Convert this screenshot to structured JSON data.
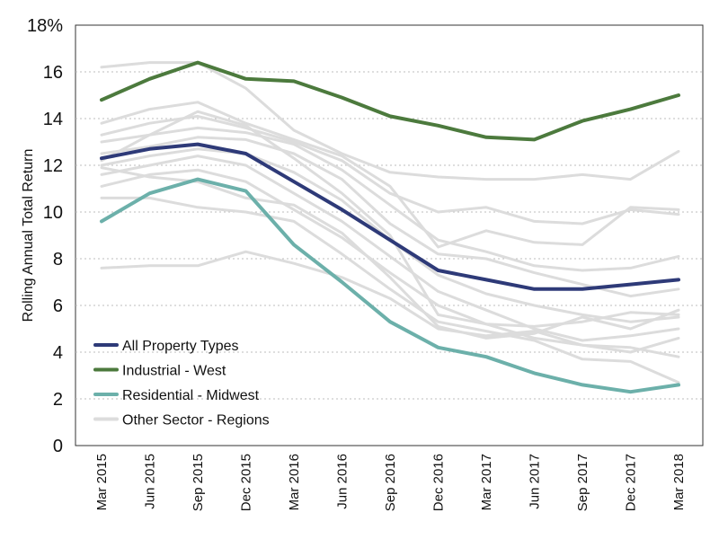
{
  "chart_data": {
    "type": "line",
    "title": "",
    "xlabel": "",
    "ylabel": "Rolling Annual Total Return",
    "ylim": [
      0,
      18
    ],
    "y_ticks": [
      "0",
      "2",
      "4",
      "6",
      "8",
      "10",
      "12",
      "14",
      "16",
      "18%"
    ],
    "categories": [
      "Mar 2015",
      "Jun 2015",
      "Sep 2015",
      "Dec 2015",
      "Mar 2016",
      "Jun 2016",
      "Sep 2016",
      "Dec 2016",
      "Mar 2017",
      "Jun 2017",
      "Sep 2017",
      "Dec 2017",
      "Mar 2018"
    ],
    "grid": "horizontal dotted",
    "legend_position": "bottom-left",
    "series": [
      {
        "name": "All Property Types",
        "color": "#2e3a78",
        "values": [
          12.3,
          12.7,
          12.9,
          12.5,
          11.3,
          10.1,
          8.8,
          7.5,
          7.1,
          6.7,
          6.7,
          6.9,
          7.1
        ]
      },
      {
        "name": "Industrial - West",
        "color": "#4c7a3d",
        "values": [
          14.8,
          15.7,
          16.4,
          15.7,
          15.6,
          14.9,
          14.1,
          13.7,
          13.2,
          13.1,
          13.9,
          14.4,
          15.0
        ]
      },
      {
        "name": "Residential - Midwest",
        "color": "#6cb0aa",
        "values": [
          9.6,
          10.8,
          11.4,
          10.9,
          8.6,
          7.0,
          5.3,
          4.2,
          3.8,
          3.1,
          2.6,
          2.3,
          2.6
        ]
      }
    ],
    "background_series_label": "Other Sector - Regions",
    "background_series_color": "#dcdcdc",
    "background_series": [
      [
        16.2,
        16.4,
        16.4,
        15.3,
        13.5,
        12.5,
        11.7,
        11.5,
        11.4,
        11.4,
        11.6,
        11.4,
        12.6
      ],
      [
        13.8,
        14.4,
        14.7,
        13.8,
        13.1,
        12.4,
        11.1,
        8.5,
        9.2,
        8.7,
        8.6,
        10.2,
        10.1
      ],
      [
        13.3,
        13.8,
        14.1,
        13.6,
        13.0,
        12.2,
        10.8,
        10.0,
        10.2,
        9.6,
        9.5,
        10.1,
        9.9
      ],
      [
        13.0,
        13.3,
        13.6,
        13.4,
        12.9,
        11.8,
        10.3,
        8.8,
        8.3,
        7.7,
        7.5,
        7.6,
        8.1
      ],
      [
        12.5,
        12.8,
        13.2,
        13.1,
        12.5,
        11.4,
        9.5,
        8.2,
        8.0,
        7.4,
        6.9,
        6.4,
        6.7
      ],
      [
        12.0,
        12.4,
        12.7,
        12.5,
        11.7,
        10.5,
        8.8,
        7.3,
        6.5,
        6.0,
        5.6,
        5.3,
        5.5
      ],
      [
        11.6,
        12.0,
        12.4,
        12.0,
        10.8,
        9.6,
        8.1,
        6.6,
        5.8,
        5.0,
        4.5,
        4.7,
        5.0
      ],
      [
        11.1,
        11.6,
        11.8,
        11.3,
        10.1,
        8.9,
        7.4,
        6.0,
        5.2,
        4.6,
        4.3,
        4.0,
        4.6
      ],
      [
        10.6,
        10.6,
        10.2,
        10.0,
        9.6,
        8.2,
        6.7,
        5.3,
        4.9,
        4.5,
        3.7,
        3.6,
        2.7
      ],
      [
        12.2,
        13.3,
        14.3,
        13.7,
        12.3,
        10.8,
        9.0,
        5.6,
        5.2,
        5.1,
        5.3,
        5.7,
        5.6
      ],
      [
        11.9,
        11.5,
        11.3,
        10.6,
        10.3,
        9.1,
        7.2,
        5.1,
        4.6,
        4.8,
        5.5,
        5.0,
        5.8
      ],
      [
        7.6,
        7.7,
        7.7,
        8.3,
        7.8,
        7.2,
        6.3,
        5.0,
        4.7,
        4.9,
        4.3,
        4.2,
        3.8
      ]
    ],
    "legend": [
      {
        "label": "All Property Types",
        "color": "#2e3a78"
      },
      {
        "label": "Industrial - West",
        "color": "#4c7a3d"
      },
      {
        "label": "Residential - Midwest",
        "color": "#6cb0aa"
      },
      {
        "label": "Other Sector - Regions",
        "color": "#dcdcdc"
      }
    ]
  }
}
